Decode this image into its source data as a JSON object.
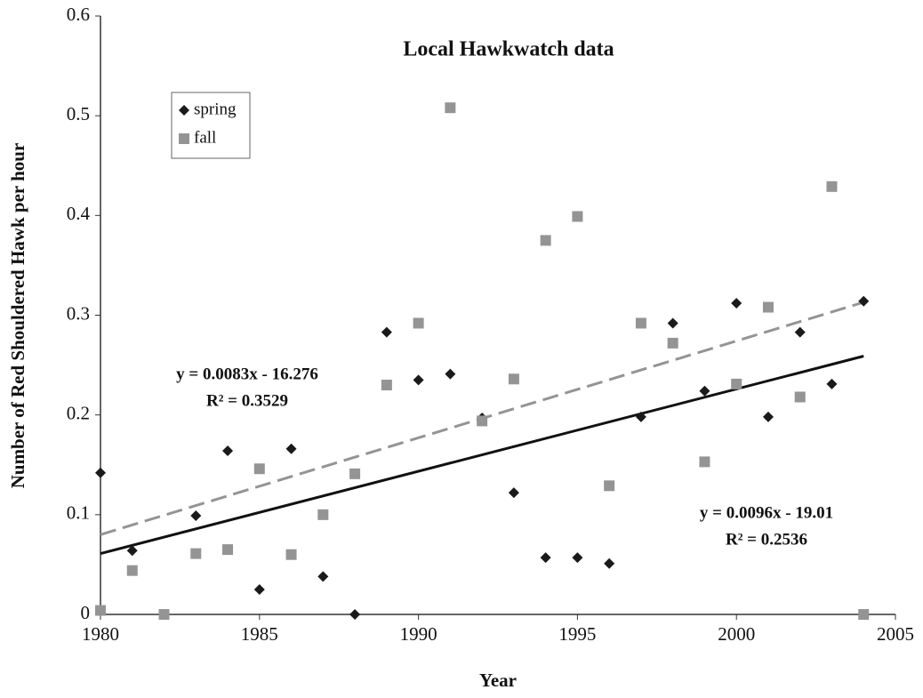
{
  "chart_data": {
    "type": "scatter",
    "title": "Local Hawkwatch data",
    "x_label": "Year",
    "y_label": "Number of Red Shouldered Hawk per hour",
    "xlim": [
      1980,
      2005
    ],
    "xticks": [
      1980,
      1985,
      1990,
      1995,
      2000,
      2005
    ],
    "ylim": [
      0,
      0.6
    ],
    "yticks": [
      0,
      0.1,
      0.2,
      0.3,
      0.4,
      0.5,
      0.6
    ],
    "legend": "upper left",
    "series": [
      {
        "name": "spring",
        "color": "#1a1a1a",
        "marker": "diamond",
        "x": [
          1980,
          1981,
          1983,
          1984,
          1985,
          1986,
          1987,
          1988,
          1989,
          1990,
          1991,
          1992,
          1993,
          1994,
          1995,
          1996,
          1997,
          1998,
          1999,
          2000,
          2001,
          2002,
          2003,
          2004
        ],
        "values": [
          0.142,
          0.064,
          0.099,
          0.164,
          0.025,
          0.166,
          0.038,
          0,
          0.283,
          0.235,
          0.241,
          0.197,
          0.122,
          0.057,
          0.057,
          0.051,
          0.198,
          0.292,
          0.224,
          0.312,
          0.198,
          0.283,
          0.231,
          0.314
        ],
        "trend": {
          "x": [
            1980,
            2004
          ],
          "values": [
            0.061,
            0.259
          ],
          "dash": false
        }
      },
      {
        "name": "fall",
        "color": "#949494",
        "marker": "square",
        "x": [
          1980,
          1981,
          1982,
          1983,
          1984,
          1985,
          1986,
          1987,
          1988,
          1989,
          1990,
          1991,
          1992,
          1993,
          1994,
          1995,
          1996,
          1997,
          1998,
          1999,
          2000,
          2001,
          2002,
          2003,
          2004
        ],
        "values": [
          0.004,
          0.044,
          0,
          0.061,
          0.065,
          0.146,
          0.06,
          0.1,
          0.141,
          0.23,
          0.292,
          0.508,
          0.194,
          0.236,
          0.375,
          0.399,
          0.129,
          0.292,
          0.272,
          0.153,
          0.231,
          0.308,
          0.218,
          0.429,
          0
        ],
        "trend": {
          "x": [
            1980,
            2004
          ],
          "values": [
            0.08,
            0.313
          ],
          "dash": true
        }
      }
    ],
    "annotations": [
      {
        "lines": [
          "y = 0.0083x - 16.276",
          "R² = 0.3529"
        ]
      },
      {
        "lines": [
          "y = 0.0096x - 19.01",
          "R² = 0.2536"
        ]
      }
    ]
  }
}
